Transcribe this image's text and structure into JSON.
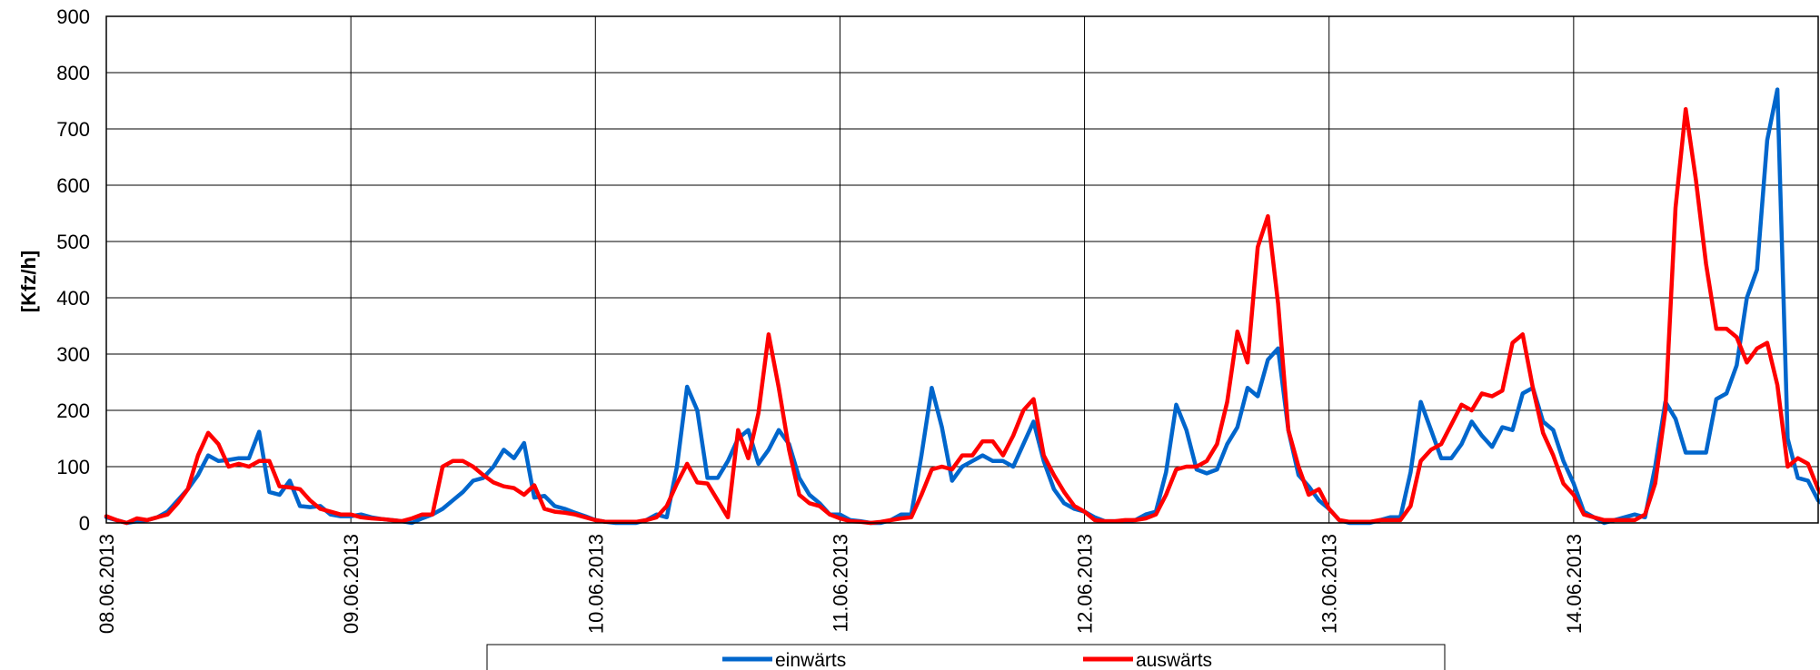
{
  "chart_data": {
    "type": "line",
    "title": "",
    "xlabel": "",
    "ylabel": "[Kfz/h]",
    "ylim": [
      0,
      900
    ],
    "yticks": [
      0,
      100,
      200,
      300,
      400,
      500,
      600,
      700,
      800,
      900
    ],
    "x_start": "08.06.2013 00:00",
    "x_step": "1 h",
    "xticks": [
      "08.06.2013",
      "09.06.2013",
      "10.06.2013",
      "11.06.2013",
      "12.06.2013",
      "13.06.2013",
      "14.06.2013"
    ],
    "grid": true,
    "legend_position": "bottom",
    "series": [
      {
        "name": "einwärts",
        "color": "#0066CC",
        "values": [
          10,
          5,
          0,
          3,
          5,
          10,
          20,
          40,
          60,
          85,
          120,
          110,
          112,
          115,
          115,
          162,
          55,
          50,
          75,
          30,
          28,
          30,
          15,
          12,
          12,
          15,
          10,
          7,
          5,
          3,
          0,
          8,
          15,
          25,
          40,
          55,
          75,
          80,
          100,
          130,
          115,
          142,
          45,
          48,
          30,
          25,
          18,
          12,
          5,
          2,
          0,
          0,
          0,
          5,
          15,
          10,
          100,
          242,
          200,
          80,
          80,
          110,
          150,
          165,
          105,
          130,
          165,
          140,
          80,
          50,
          35,
          15,
          15,
          5,
          3,
          0,
          0,
          5,
          15,
          15,
          120,
          240,
          170,
          75,
          100,
          110,
          120,
          110,
          110,
          100,
          140,
          180,
          110,
          60,
          35,
          25,
          20,
          10,
          3,
          3,
          3,
          5,
          15,
          20,
          90,
          210,
          165,
          95,
          88,
          95,
          140,
          170,
          240,
          225,
          290,
          310,
          165,
          85,
          65,
          40,
          25,
          5,
          0,
          0,
          0,
          5,
          10,
          10,
          90,
          215,
          165,
          115,
          115,
          140,
          180,
          155,
          135,
          170,
          165,
          230,
          240,
          180,
          165,
          110,
          70,
          20,
          10,
          0,
          5,
          10,
          15,
          10,
          100,
          215,
          185,
          125,
          125,
          125,
          220,
          230,
          280,
          400,
          450,
          680,
          770,
          150,
          80,
          75,
          40,
          25
        ]
      },
      {
        "name": "auswärts",
        "color": "#FF0000",
        "values": [
          12,
          5,
          0,
          8,
          5,
          10,
          15,
          35,
          60,
          120,
          160,
          140,
          100,
          105,
          100,
          110,
          110,
          65,
          63,
          60,
          40,
          25,
          20,
          15,
          15,
          10,
          8,
          7,
          5,
          3,
          8,
          15,
          15,
          100,
          110,
          110,
          100,
          85,
          72,
          65,
          62,
          50,
          67,
          25,
          20,
          18,
          15,
          10,
          5,
          2,
          2,
          2,
          2,
          5,
          10,
          30,
          70,
          105,
          72,
          70,
          40,
          10,
          165,
          115,
          195,
          335,
          240,
          130,
          50,
          35,
          30,
          15,
          8,
          3,
          2,
          0,
          2,
          5,
          8,
          10,
          50,
          95,
          100,
          95,
          120,
          120,
          145,
          145,
          120,
          155,
          200,
          220,
          120,
          85,
          55,
          30,
          20,
          5,
          3,
          3,
          5,
          5,
          8,
          15,
          50,
          95,
          100,
          100,
          110,
          140,
          215,
          340,
          285,
          490,
          545,
          390,
          165,
          100,
          50,
          60,
          25,
          5,
          2,
          2,
          2,
          5,
          5,
          5,
          30,
          110,
          130,
          140,
          175,
          210,
          200,
          230,
          225,
          235,
          320,
          335,
          240,
          160,
          120,
          70,
          50,
          15,
          10,
          5,
          5,
          5,
          5,
          15,
          70,
          200,
          560,
          735,
          610,
          460,
          345,
          345,
          330,
          285,
          310,
          320,
          245,
          100,
          115,
          105,
          60,
          35
        ]
      }
    ]
  }
}
